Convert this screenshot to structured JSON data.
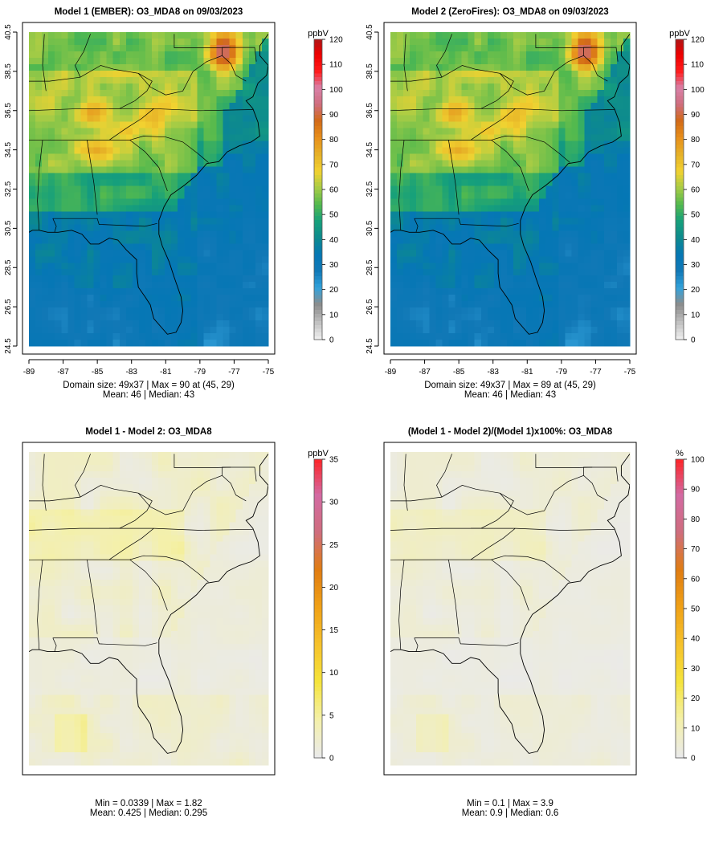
{
  "chart_data": [
    {
      "type": "heatmap",
      "title": "Model 1 (EMBER): O3_MDA8 on 09/03/2023",
      "variable": "O3_MDA8",
      "date": "09/03/2023",
      "x_ticks": [
        "-89",
        "-87",
        "-85",
        "-83",
        "-81",
        "-79",
        "-77",
        "-75"
      ],
      "y_ticks": [
        "24.5",
        "26.5",
        "28.5",
        "30.5",
        "32.5",
        "34.5",
        "36.5",
        "38.5",
        "40.5"
      ],
      "xlim": [
        -89,
        -75
      ],
      "ylim": [
        24.5,
        40.5
      ],
      "colorbar": {
        "unit": "ppbV",
        "min": 0,
        "max": 120,
        "ticks": [
          "0",
          "10",
          "20",
          "30",
          "40",
          "50",
          "60",
          "70",
          "80",
          "90",
          "100",
          "110",
          "120"
        ]
      },
      "footer": [
        "Domain size: 49x37 | Max = 90 at (45, 29)",
        "Mean: 46 |  Median: 43"
      ],
      "stats": {
        "nx": 49,
        "ny": 37,
        "max": 90,
        "max_at": [
          45,
          29
        ],
        "mean": 46,
        "median": 43
      }
    },
    {
      "type": "heatmap",
      "title": "Model 2 (ZeroFires): O3_MDA8 on 09/03/2023",
      "variable": "O3_MDA8",
      "date": "09/03/2023",
      "x_ticks": [
        "-89",
        "-87",
        "-85",
        "-83",
        "-81",
        "-79",
        "-77",
        "-75"
      ],
      "y_ticks": [
        "24.5",
        "26.5",
        "28.5",
        "30.5",
        "32.5",
        "34.5",
        "36.5",
        "38.5",
        "40.5"
      ],
      "xlim": [
        -89,
        -75
      ],
      "ylim": [
        24.5,
        40.5
      ],
      "colorbar": {
        "unit": "ppbV",
        "min": 0,
        "max": 120,
        "ticks": [
          "0",
          "10",
          "20",
          "30",
          "40",
          "50",
          "60",
          "70",
          "80",
          "90",
          "100",
          "110",
          "120"
        ]
      },
      "footer": [
        "Domain size: 49x37 | Max = 89 at (45, 29)",
        "Mean: 46 |  Median: 43"
      ],
      "stats": {
        "nx": 49,
        "ny": 37,
        "max": 89,
        "max_at": [
          45,
          29
        ],
        "mean": 46,
        "median": 43
      }
    },
    {
      "type": "heatmap",
      "title": "Model 1 - Model 2: O3_MDA8",
      "variable": "O3_MDA8",
      "colorbar": {
        "unit": "ppbV",
        "min": 0,
        "max": 35,
        "ticks": [
          "0",
          "5",
          "10",
          "15",
          "20",
          "25",
          "30",
          "35"
        ]
      },
      "footer": [
        "Min = 0.0339 | Max = 1.82",
        "Mean: 0.425 |  Median: 0.295"
      ],
      "stats": {
        "min": 0.0339,
        "max": 1.82,
        "mean": 0.425,
        "median": 0.295
      }
    },
    {
      "type": "heatmap",
      "title": "(Model 1 - Model 2)/(Model 1)x100%: O3_MDA8",
      "variable": "O3_MDA8",
      "colorbar": {
        "unit": "%",
        "min": 0,
        "max": 100,
        "ticks": [
          "0",
          "10",
          "20",
          "30",
          "40",
          "50",
          "60",
          "70",
          "80",
          "90",
          "100"
        ]
      },
      "footer": [
        "Min = 0.1 | Max = 3.9",
        "Mean: 0.9 |  Median: 0.6"
      ],
      "stats": {
        "min": 0.1,
        "max": 3.9,
        "mean": 0.9,
        "median": 0.6
      }
    }
  ],
  "colors": {
    "ramp": [
      "#ececec",
      "#bdbdbd",
      "#8c8c8c",
      "#33a3dc",
      "#1178b6",
      "#0577b5",
      "#0d8a8e",
      "#16a07b",
      "#53b94e",
      "#a7cc45",
      "#f2d230",
      "#e6b127",
      "#e8901b",
      "#d26a16",
      "#cf6d7d",
      "#d981a9",
      "#ff1a1a",
      "#ee0000",
      "#a81818"
    ],
    "diff_ramp": [
      "#eaeaea",
      "#f4f0a8",
      "#f5e43b",
      "#f6c22b",
      "#f0a116",
      "#e07c12",
      "#cf6d7d",
      "#d36aa3",
      "#ff2121"
    ],
    "plot_background": "#e6e6e6",
    "map_lines": "#000000"
  }
}
